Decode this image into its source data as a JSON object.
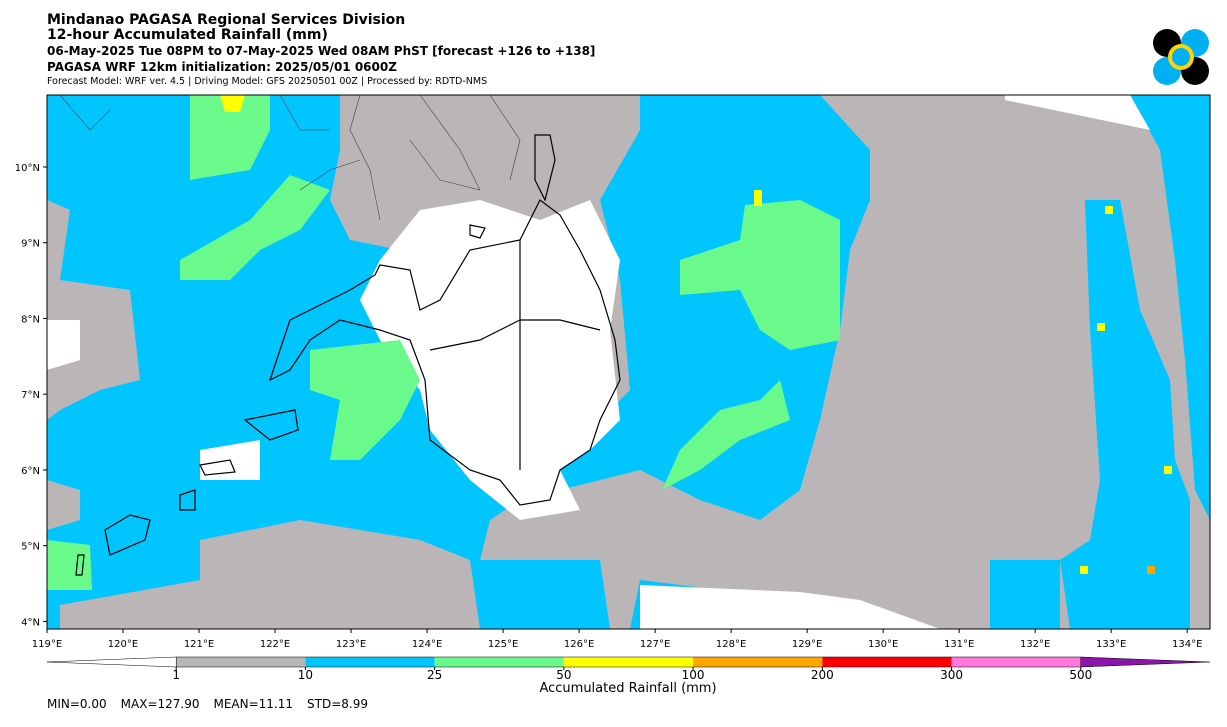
{
  "header": {
    "title": "Mindanao PAGASA Regional Services Division",
    "subtitle": "12-hour Accumulated Rainfall (mm)",
    "period": "06-May-2025 Tue 08PM to 07-May-2025 Wed 08AM PhST [forecast +126 to +138]",
    "initialization": "PAGASA WRF 12km initialization: 2025/05/01 0600Z",
    "model_info": "Forecast Model: WRF ver. 4.5 | Driving Model: GFS 20250501 00Z | Processed by: RDTD-NMS"
  },
  "map": {
    "lon_range": [
      119,
      134.3
    ],
    "lat_range": [
      3.9,
      10.95
    ],
    "lon_ticks": [
      {
        "value": 119,
        "label": "119°E"
      },
      {
        "value": 120,
        "label": "120°E"
      },
      {
        "value": 121,
        "label": "121°E"
      },
      {
        "value": 122,
        "label": "122°E"
      },
      {
        "value": 123,
        "label": "123°E"
      },
      {
        "value": 124,
        "label": "124°E"
      },
      {
        "value": 125,
        "label": "125°E"
      },
      {
        "value": 126,
        "label": "126°E"
      },
      {
        "value": 127,
        "label": "127°E"
      },
      {
        "value": 128,
        "label": "128°E"
      },
      {
        "value": 129,
        "label": "129°E"
      },
      {
        "value": 130,
        "label": "130°E"
      },
      {
        "value": 131,
        "label": "131°E"
      },
      {
        "value": 132,
        "label": "132°E"
      },
      {
        "value": 133,
        "label": "133°E"
      },
      {
        "value": 134,
        "label": "134°E"
      }
    ],
    "lat_ticks": [
      {
        "value": 4,
        "label": "4°N"
      },
      {
        "value": 5,
        "label": "5°N"
      },
      {
        "value": 6,
        "label": "6°N"
      },
      {
        "value": 7,
        "label": "7°N"
      },
      {
        "value": 8,
        "label": "8°N"
      },
      {
        "value": 9,
        "label": "9°N"
      },
      {
        "value": 10,
        "label": "10°N"
      }
    ]
  },
  "colorbar": {
    "label": "Accumulated Rainfall (mm)",
    "under_color": "#ffffff",
    "over_color": "#8c14aa",
    "levels": [
      1,
      10,
      25,
      50,
      100,
      200,
      300,
      500
    ],
    "colors": [
      "#bab6b8",
      "#00c5ff",
      "#6afa8c",
      "#ffff00",
      "#ffa500",
      "#ff0000",
      "#ff78dc"
    ]
  },
  "stats": [
    "MIN=0.00",
    "MAX=127.90",
    "MEAN=11.11",
    "STD=8.99"
  ]
}
